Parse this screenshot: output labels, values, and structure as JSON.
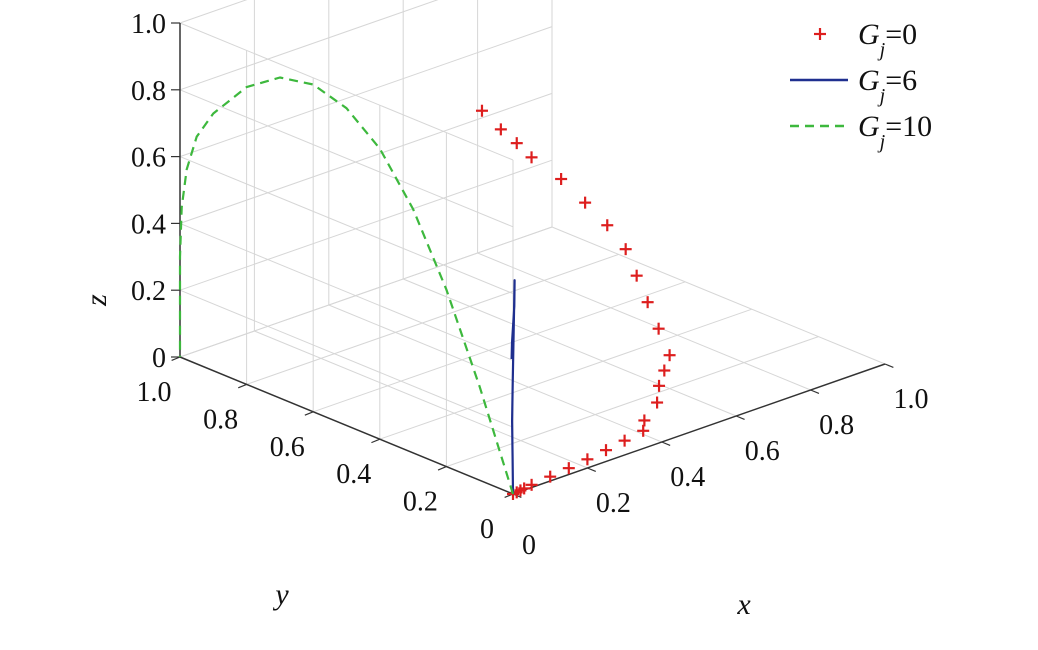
{
  "chart_data": {
    "type": "line",
    "title": "",
    "xlabel": "x",
    "ylabel": "y",
    "zlabel": "z",
    "xlim": [
      0,
      1
    ],
    "ylim": [
      0,
      1
    ],
    "zlim": [
      0,
      1
    ],
    "grid": true,
    "legend_position": "top-right",
    "x_ticks": [
      "0",
      "0.2",
      "0.4",
      "0.6",
      "0.8",
      "1.0"
    ],
    "y_ticks": [
      "0",
      "0.2",
      "0.4",
      "0.6",
      "0.8",
      "1.0"
    ],
    "z_ticks": [
      "0",
      "0.2",
      "0.4",
      "0.6",
      "0.8",
      "1.0"
    ],
    "series": [
      {
        "name": "G_j=0",
        "legend_var": "G",
        "legend_sub": "j",
        "legend_val": "=0",
        "style": "plus-markers",
        "color": "#dd1e1e",
        "points": [
          [
            0,
            0,
            0
          ],
          [
            0.01,
            0,
            0.001
          ],
          [
            0.02,
            0,
            0.003
          ],
          [
            0.03,
            0,
            0.005
          ],
          [
            0.05,
            0,
            0.008
          ],
          [
            0.1,
            0,
            0.013
          ],
          [
            0.15,
            0,
            0.019
          ],
          [
            0.2,
            0,
            0.026
          ],
          [
            0.25,
            0,
            0.034
          ],
          [
            0.3,
            0,
            0.043
          ],
          [
            0.35,
            0,
            0.053
          ],
          [
            0.38,
            0.03,
            0.06
          ],
          [
            0.45,
            0.07,
            0.07
          ],
          [
            0.5,
            0.12,
            0.08
          ],
          [
            0.55,
            0.16,
            0.09
          ],
          [
            0.6,
            0.2,
            0.1
          ],
          [
            0.66,
            0.3,
            0.115
          ],
          [
            0.72,
            0.4,
            0.13
          ],
          [
            0.78,
            0.5,
            0.145
          ],
          [
            0.84,
            0.6,
            0.16
          ],
          [
            0.88,
            0.7,
            0.175
          ],
          [
            0.91,
            0.8,
            0.19
          ],
          [
            0.935,
            0.9,
            0.21
          ],
          [
            0.945,
            1.0,
            0.23
          ],
          [
            0.95,
            1.05,
            0.25
          ],
          [
            0.952,
            1.1,
            0.27
          ],
          [
            0.955,
            1.16,
            0.3
          ]
        ]
      },
      {
        "name": "G_j=6",
        "legend_var": "G",
        "legend_sub": "j",
        "legend_val": "=6",
        "style": "solid",
        "color": "#1f2f8f",
        "points": [
          [
            0,
            0,
            0
          ],
          [
            0.008,
            0.01,
            0.1
          ],
          [
            0.02,
            0.025,
            0.2
          ],
          [
            0.035,
            0.04,
            0.3
          ],
          [
            0.052,
            0.057,
            0.4
          ],
          [
            0.07,
            0.075,
            0.5
          ],
          [
            0.085,
            0.09,
            0.57
          ],
          [
            0.075,
            0.08,
            0.5
          ],
          [
            0.06,
            0.07,
            0.4
          ],
          [
            0.05,
            0.06,
            0.36
          ]
        ]
      },
      {
        "name": "G_j=10",
        "legend_var": "G",
        "legend_sub": "j",
        "legend_val": "=10",
        "style": "dashed",
        "color": "#3db83d",
        "points": [
          [
            0,
            0,
            0
          ],
          [
            0,
            0.1,
            0.28
          ],
          [
            0,
            0.2,
            0.53
          ],
          [
            0,
            0.3,
            0.73
          ],
          [
            0,
            0.4,
            0.87
          ],
          [
            0,
            0.5,
            0.95
          ],
          [
            0,
            0.6,
            0.98
          ],
          [
            0,
            0.7,
            0.96
          ],
          [
            0,
            0.8,
            0.89
          ],
          [
            0,
            0.9,
            0.77
          ],
          [
            0,
            0.95,
            0.68
          ],
          [
            0,
            0.98,
            0.57
          ],
          [
            0,
            0.995,
            0.45
          ],
          [
            0,
            1.0,
            0.3
          ],
          [
            0,
            1.0,
            0.15
          ],
          [
            0,
            1.0,
            0
          ]
        ]
      }
    ]
  }
}
